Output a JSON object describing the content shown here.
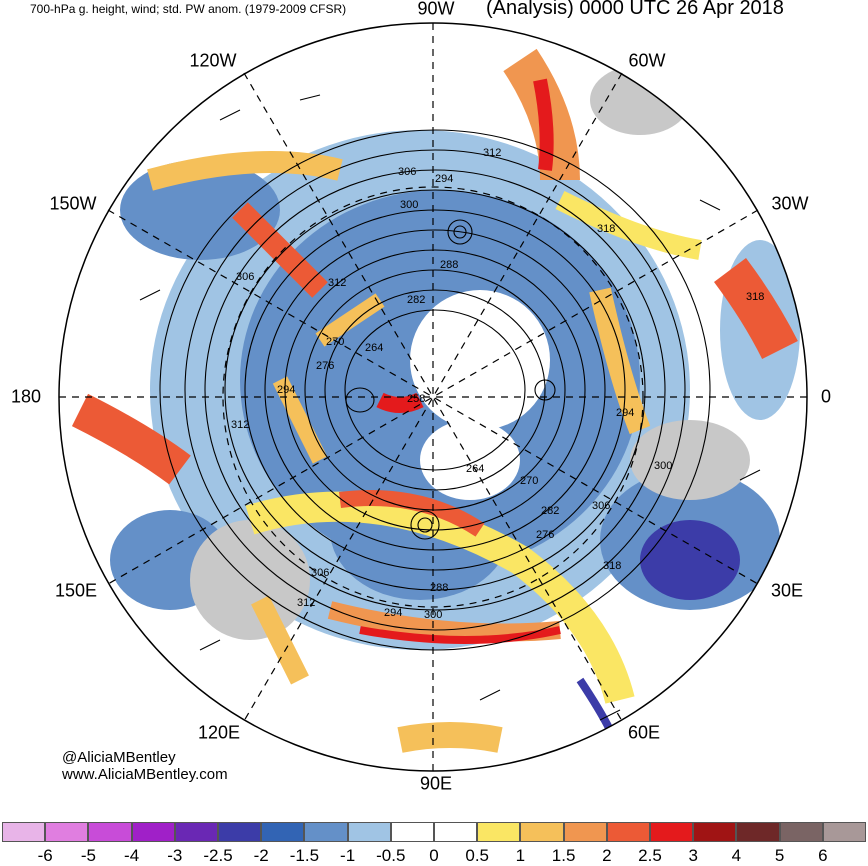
{
  "header": {
    "left_title": "700-hPa g. height, wind; std. PW anom. (1979-2009 CFSR)",
    "right_title": "(Analysis) 0000 UTC 26 Apr 2018"
  },
  "longitude_labels": {
    "top": "90W",
    "top_left": "120W",
    "top_right": "60W",
    "upper_left": "150W",
    "upper_right": "30W",
    "left": "180",
    "right": "0",
    "lower_left": "150E",
    "lower_right": "30E",
    "bottom_left": "120E",
    "bottom_right": "60E",
    "bottom": "90E"
  },
  "height_contour_labels": [
    "312",
    "306",
    "294",
    "300",
    "318",
    "318",
    "306",
    "312",
    "288",
    "282",
    "270",
    "264",
    "276",
    "294",
    "258",
    "312",
    "294",
    "300",
    "264",
    "270",
    "282",
    "306",
    "276",
    "318",
    "306",
    "312",
    "288",
    "294",
    "300"
  ],
  "credits": {
    "twitter": "@AliciaMBentley",
    "website": "www.AliciaMBentley.com"
  },
  "colorbar": {
    "ticks": [
      "-6",
      "-5",
      "-4",
      "-3",
      "-2.5",
      "-2",
      "-1.5",
      "-1",
      "-0.5",
      "0",
      "0.5",
      "1",
      "1.5",
      "2",
      "2.5",
      "3",
      "4",
      "5",
      "6"
    ],
    "colors": [
      "#e8b4e8",
      "#e07ee0",
      "#c84cd8",
      "#a020c8",
      "#6a28b4",
      "#3c3ca8",
      "#3264b4",
      "#6490c8",
      "#a0c4e4",
      "#ffffff",
      "#ffffff",
      "#fae664",
      "#f5c05a",
      "#f09650",
      "#ec5a36",
      "#e41a1c",
      "#a01414",
      "#6e2828",
      "#7a6464",
      "#a89898"
    ]
  }
}
